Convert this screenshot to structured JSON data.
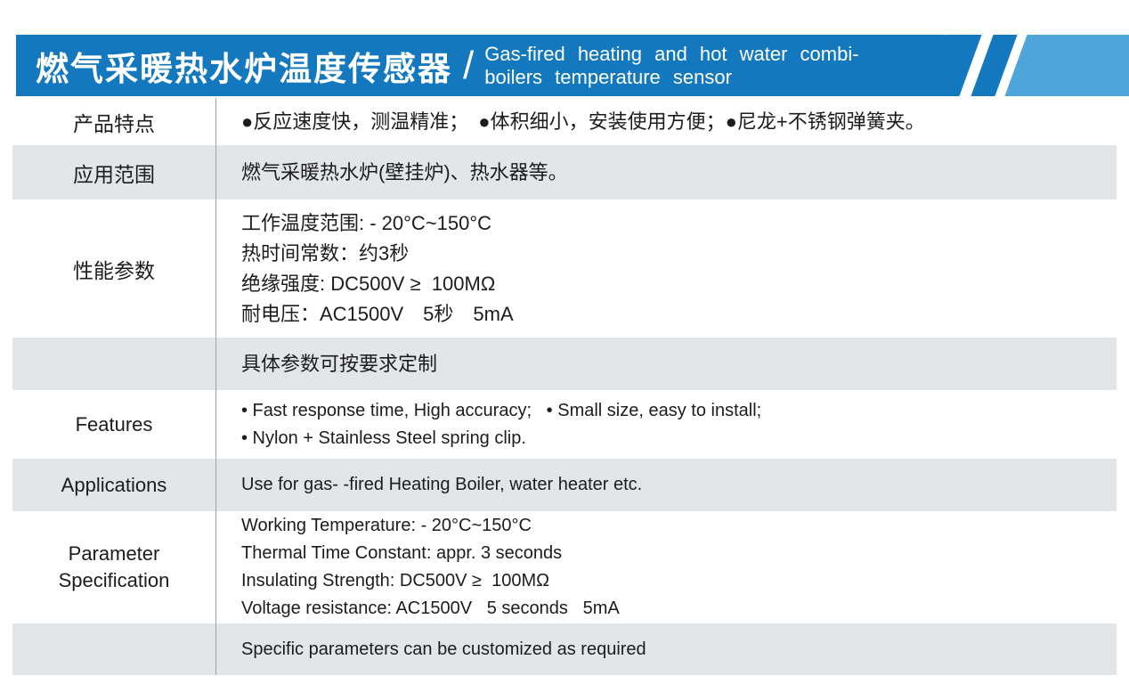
{
  "colors": {
    "banner_blue": "#1378bd",
    "banner_light_blue": "#4fa5da",
    "row_gray": "#e3e6e9",
    "divider_gray": "#9aa1a7",
    "text": "#1c1c1c"
  },
  "banner": {
    "title_zh": "燃气采暖热水炉温度传感器",
    "separator": "/",
    "subtitle_en": "Gas-fired heating and hot water combi-\nboilers temperature sensor"
  },
  "table": {
    "rows": [
      {
        "label": "产品特点",
        "content": "●反应速度快，测温精准；　●体积细小，安装使用方便；●尼龙+不锈钢弹簧夹。"
      },
      {
        "label": "应用范围",
        "content": "燃气采暖热水炉(壁挂炉)、热水器等。"
      },
      {
        "label": "性能参数",
        "content": "工作温度范围: - 20°C~150°C\n热时间常数：约3秒\n绝缘强度: DC500V ≥  100MΩ\n耐电压：AC1500V　5秒　5mA"
      },
      {
        "label": "",
        "content": "具体参数可按要求定制"
      },
      {
        "label": "Features",
        "content": "• Fast response time, High accuracy;   • Small size, easy to install;\n• Nylon + Stainless Steel spring clip."
      },
      {
        "label": "Applications",
        "content": "Use for gas- -fired Heating Boiler, water heater etc."
      },
      {
        "label": "Parameter\nSpecification",
        "content": "Working Temperature: - 20°C~150°C\nThermal Time Constant: appr. 3 seconds\nInsulating Strength: DC500V ≥  100MΩ\nVoltage resistance: AC1500V   5 seconds   5mA"
      },
      {
        "label": "",
        "content": "Specific parameters can be customized as required"
      }
    ]
  }
}
